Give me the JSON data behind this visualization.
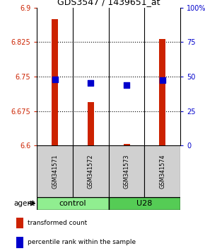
{
  "title": "GDS3547 / 1439651_at",
  "samples": [
    "GSM341571",
    "GSM341572",
    "GSM341573",
    "GSM341574"
  ],
  "bar_values": [
    6.875,
    6.695,
    6.603,
    6.832
  ],
  "percentile_values": [
    0.478,
    0.455,
    0.44,
    0.472
  ],
  "ylim_left": [
    6.6,
    6.9
  ],
  "ylim_right": [
    0,
    1
  ],
  "yticks_left": [
    6.6,
    6.675,
    6.75,
    6.825,
    6.9
  ],
  "ytick_labels_left": [
    "6.6",
    "6.675",
    "6.75",
    "6.825",
    "6.9"
  ],
  "yticks_right": [
    0.0,
    0.25,
    0.5,
    0.75,
    1.0
  ],
  "ytick_labels_right": [
    "0",
    "25",
    "50",
    "75",
    "100%"
  ],
  "bar_color": "#CC2200",
  "dot_color": "#0000CC",
  "bar_bottom": 6.6,
  "agent_label": "agent",
  "group_label_1": "control",
  "group_label_2": "U28",
  "legend_tc": "transformed count",
  "legend_pr": "percentile rank within the sample",
  "light_green": "#90EE90",
  "mid_green": "#55CC55",
  "gray_cell": "#d0d0d0",
  "bg_color": "#ffffff"
}
